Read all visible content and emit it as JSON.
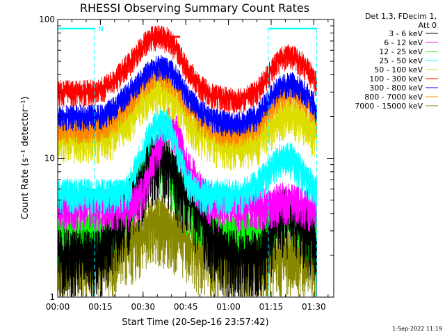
{
  "chart_data": {
    "type": "line",
    "title": "RHESSI Observing Summary Count Rates",
    "xlabel": "Start Time (20-Sep-16 23:57:42)",
    "ylabel": "Count Rate (s⁻¹ detector⁻¹)",
    "y_scale": "log",
    "ylim": [
      1,
      100
    ],
    "xlim_minutes": [
      0,
      97
    ],
    "x_tick_labels": [
      "00:00",
      "00:15",
      "00:30",
      "00:45",
      "01:00",
      "01:15",
      "01:30"
    ],
    "y_tick_labels": [
      "1",
      "10",
      "100"
    ],
    "x_tick_minutes": [
      0,
      15,
      30,
      45,
      60,
      75,
      90
    ],
    "y_ticks": [
      1,
      10,
      100
    ],
    "legend_header": [
      "Det 1,3, FDecim 1,",
      "Att 0"
    ],
    "legend_position": "right",
    "timestamp": "1-Sep-2022 11:19",
    "flag_label": "N",
    "flag_color": "#00ffff",
    "flag_intervals_minutes": [
      [
        0,
        13
      ],
      [
        74,
        91
      ]
    ],
    "marker_interval_minutes": [
      38,
      43
    ],
    "marker_value": 75,
    "marker_color": "#ff0000",
    "time_x_minutes": [
      0,
      5,
      10,
      15,
      20,
      25,
      30,
      33,
      36,
      39,
      42,
      45,
      50,
      55,
      60,
      65,
      70,
      74,
      78,
      82,
      86,
      90,
      91
    ],
    "series": [
      {
        "name": "3 - 6 keV",
        "color": "#000000",
        "values": [
          2.0,
          2.0,
          2.0,
          2.0,
          3.0,
          4.5,
          7.0,
          10.0,
          10.0,
          9.0,
          7.0,
          5.5,
          4.0,
          2.5,
          2.0,
          2.0,
          2.0,
          2.5,
          4.0,
          4.0,
          3.5,
          2.5,
          2.0
        ]
      },
      {
        "name": "6 - 12 keV",
        "color": "#ff00ff",
        "values": [
          4.5,
          4.5,
          4.5,
          4.5,
          4.5,
          4.5,
          5.5,
          9.0,
          13.0,
          18.0,
          15.0,
          9.0,
          6.0,
          4.5,
          4.5,
          4.5,
          4.5,
          4.5,
          5.0,
          5.0,
          4.5,
          4.5,
          4.5
        ]
      },
      {
        "name": "12 - 25 keV",
        "color": "#00ff00",
        "values": [
          3.0,
          3.0,
          3.0,
          3.0,
          3.5,
          5.0,
          8.0,
          10.0,
          9.5,
          8.0,
          6.5,
          5.0,
          4.0,
          3.5,
          3.0,
          3.0,
          3.0,
          3.5,
          4.0,
          4.0,
          3.5,
          3.0,
          3.0
        ]
      },
      {
        "name": "25 - 50 keV",
        "color": "#00ffff",
        "values": [
          5.5,
          5.5,
          5.5,
          5.5,
          5.5,
          6.0,
          11.0,
          16.0,
          19.0,
          17.0,
          12.0,
          7.0,
          5.5,
          5.5,
          5.5,
          5.5,
          6.5,
          8.0,
          10.0,
          10.0,
          8.0,
          6.0,
          5.5
        ]
      },
      {
        "name": "50 - 100 keV",
        "color": "#dddd00",
        "values": [
          14.0,
          14.0,
          14.0,
          14.0,
          15.0,
          19.0,
          26.0,
          30.0,
          32.0,
          30.0,
          26.0,
          20.0,
          15.0,
          13.0,
          12.5,
          12.5,
          13.0,
          16.0,
          20.0,
          21.0,
          19.0,
          15.0,
          14.0
        ]
      },
      {
        "name": "100 - 300 keV",
        "color": "#ff0000",
        "values": [
          30.0,
          30.0,
          30.0,
          31.0,
          36.0,
          48.0,
          65.0,
          75.0,
          75.0,
          72.0,
          60.0,
          45.0,
          33.0,
          28.0,
          27.0,
          27.0,
          30.0,
          40.0,
          52.0,
          55.0,
          48.0,
          38.0,
          33.0
        ]
      },
      {
        "name": "300 - 800 keV",
        "color": "#0000ff",
        "values": [
          20.0,
          20.0,
          20.0,
          20.0,
          23.0,
          30.0,
          38.0,
          44.0,
          46.0,
          44.0,
          38.0,
          29.0,
          22.0,
          19.0,
          18.0,
          18.0,
          20.0,
          26.0,
          33.0,
          35.0,
          31.0,
          25.0,
          21.0
        ]
      },
      {
        "name": "800 - 7000 keV",
        "color": "#ff8800",
        "values": [
          16.0,
          16.0,
          16.0,
          16.5,
          19.0,
          25.0,
          33.0,
          38.0,
          40.0,
          38.0,
          33.0,
          25.0,
          18.5,
          16.0,
          15.0,
          15.0,
          17.0,
          22.0,
          28.0,
          30.0,
          27.0,
          21.0,
          18.0
        ]
      },
      {
        "name": "7000 - 15000 keV",
        "color": "#888800",
        "values": [
          1.8,
          1.8,
          1.8,
          1.9,
          2.2,
          2.5,
          3.0,
          3.5,
          3.6,
          3.3,
          3.0,
          2.5,
          2.2,
          1.9,
          1.8,
          1.8,
          1.8,
          1.9,
          2.1,
          2.2,
          2.0,
          1.9,
          1.8
        ]
      }
    ]
  }
}
